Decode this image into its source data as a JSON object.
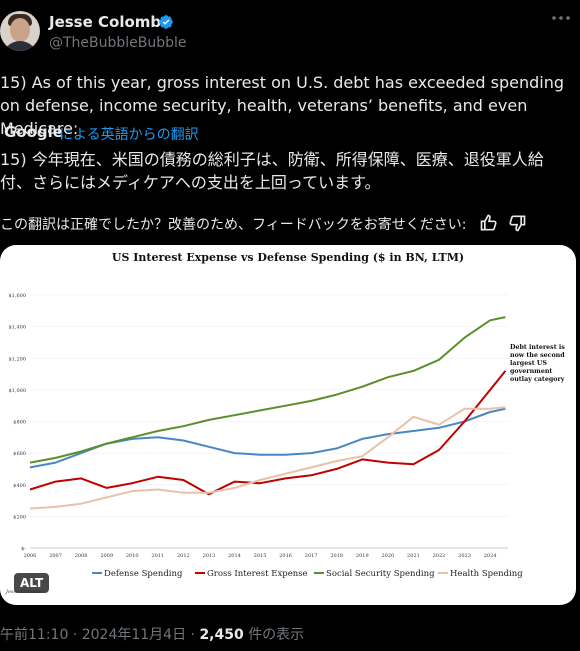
{
  "author": {
    "name": "Jesse Colombo",
    "handle": "@TheBubbleBubble"
  },
  "tweet": {
    "text": "15) As of this year, gross interest on U.S. debt has exceeded spending on defense, income security, health, veterans’ benefits, and even Medicare:",
    "translator": "Google",
    "translation_label": "による英語からの翻訳",
    "translation": "15) 今年現在、米国の債務の総利子は、防衛、所得保障、医療、退役軍人給付、さらにはメディケアへの支出を上回っています。",
    "feedback_prompt": "この翻訳は正確でしたか？改善のため、フィードバックをお寄せください:"
  },
  "media": {
    "alt_badge": "ALT"
  },
  "footer": {
    "time": "午前11:10",
    "date": "2024年11月4日",
    "views": "2,450",
    "views_label": "件の表示"
  },
  "chart_data": {
    "type": "line",
    "title": "US Interest Expense vs Defense Spending ($ in BN, LTM)",
    "x": [
      2006,
      2007,
      2008,
      2009,
      2010,
      2011,
      2012,
      2013,
      2014,
      2015,
      2016,
      2017,
      2018,
      2019,
      2020,
      2021,
      2022,
      2023,
      2024
    ],
    "x_tick_labels": [
      "2006",
      "2007",
      "2008",
      "2009",
      "2010",
      "2011",
      "2012",
      "2013",
      "2014",
      "2015",
      "2016",
      "2017",
      "2018",
      "2019",
      "2020",
      "2021",
      "2022",
      "2023",
      "2024"
    ],
    "y_tick_labels": [
      "$-",
      "$200",
      "$400",
      "$600",
      "$800",
      "$1,000",
      "$1,200",
      "$1,400",
      "$1,600"
    ],
    "ylim": [
      0,
      1600
    ],
    "xlim": [
      2006,
      2024.7
    ],
    "series": [
      {
        "name": "Defense Spending",
        "color": "#4a86c5",
        "points": [
          [
            2006,
            510
          ],
          [
            2007,
            540
          ],
          [
            2008,
            600
          ],
          [
            2009,
            660
          ],
          [
            2010,
            690
          ],
          [
            2011,
            700
          ],
          [
            2012,
            680
          ],
          [
            2013,
            640
          ],
          [
            2014,
            600
          ],
          [
            2015,
            590
          ],
          [
            2016,
            590
          ],
          [
            2017,
            600
          ],
          [
            2018,
            630
          ],
          [
            2019,
            690
          ],
          [
            2020,
            720
          ],
          [
            2021,
            740
          ],
          [
            2022,
            760
          ],
          [
            2023,
            800
          ],
          [
            2024,
            860
          ],
          [
            2024.6,
            880
          ]
        ]
      },
      {
        "name": "Gross Interest Expense",
        "color": "#c00000",
        "points": [
          [
            2006,
            370
          ],
          [
            2007,
            420
          ],
          [
            2008,
            440
          ],
          [
            2009,
            380
          ],
          [
            2010,
            410
          ],
          [
            2011,
            450
          ],
          [
            2012,
            430
          ],
          [
            2013,
            340
          ],
          [
            2014,
            420
          ],
          [
            2015,
            410
          ],
          [
            2016,
            440
          ],
          [
            2017,
            460
          ],
          [
            2018,
            500
          ],
          [
            2019,
            560
          ],
          [
            2020,
            540
          ],
          [
            2021,
            530
          ],
          [
            2022,
            620
          ],
          [
            2023,
            800
          ],
          [
            2024,
            1000
          ],
          [
            2024.6,
            1120
          ]
        ]
      },
      {
        "name": "Social Security Spending",
        "color": "#5a8f29",
        "points": [
          [
            2006,
            540
          ],
          [
            2007,
            570
          ],
          [
            2008,
            610
          ],
          [
            2009,
            660
          ],
          [
            2010,
            700
          ],
          [
            2011,
            740
          ],
          [
            2012,
            770
          ],
          [
            2013,
            810
          ],
          [
            2014,
            840
          ],
          [
            2015,
            870
          ],
          [
            2016,
            900
          ],
          [
            2017,
            930
          ],
          [
            2018,
            970
          ],
          [
            2019,
            1020
          ],
          [
            2020,
            1080
          ],
          [
            2021,
            1120
          ],
          [
            2022,
            1190
          ],
          [
            2023,
            1330
          ],
          [
            2024,
            1440
          ],
          [
            2024.6,
            1460
          ]
        ]
      },
      {
        "name": "Health Spending",
        "color": "#e8c1a8",
        "points": [
          [
            2006,
            250
          ],
          [
            2007,
            260
          ],
          [
            2008,
            280
          ],
          [
            2009,
            320
          ],
          [
            2010,
            360
          ],
          [
            2011,
            370
          ],
          [
            2012,
            350
          ],
          [
            2013,
            350
          ],
          [
            2014,
            380
          ],
          [
            2015,
            430
          ],
          [
            2016,
            470
          ],
          [
            2017,
            510
          ],
          [
            2018,
            550
          ],
          [
            2019,
            580
          ],
          [
            2020,
            700
          ],
          [
            2021,
            830
          ],
          [
            2022,
            780
          ],
          [
            2023,
            880
          ],
          [
            2024,
            880
          ],
          [
            2024.6,
            890
          ]
        ]
      }
    ],
    "annotation": "Debt interest is now the second largest US government outlay category",
    "source": "Jesse Colombo",
    "legend_position": "bottom"
  }
}
